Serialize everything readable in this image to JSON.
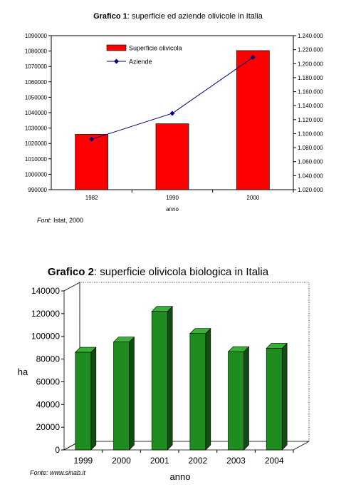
{
  "chart_data": [
    {
      "type": "bar",
      "title_bold": "Grafico 1",
      "title_rest": ": superficie ed aziende olivicole in Italia",
      "categories": [
        "1982",
        "1990",
        "2000"
      ],
      "xlabel": "anno",
      "series": [
        {
          "name": "Superficie olivicola",
          "kind": "bar",
          "axis": "left",
          "color": "#ff0000",
          "values": [
            1025900,
            1032800,
            1080300
          ]
        },
        {
          "name": "Aziende",
          "kind": "line",
          "axis": "right",
          "color": "#000080",
          "values": [
            1092000,
            1129000,
            1209000
          ]
        }
      ],
      "y_left": {
        "ylim": [
          990000,
          1090000
        ],
        "ticks": [
          "990000",
          "1000000",
          "1010000",
          "1020000",
          "1030000",
          "1040000",
          "1050000",
          "1060000",
          "1070000",
          "1080000",
          "1090000"
        ]
      },
      "y_right": {
        "ylim": [
          1020000,
          1240000
        ],
        "ticks": [
          "1.020.000",
          "1.040.000",
          "1.060.000",
          "1.080.000",
          "1.100.000",
          "1.120.000",
          "1.140.000",
          "1.160.000",
          "1.180.000",
          "1.200.000",
          "1.220.000",
          "1.240.000"
        ]
      },
      "legend_position": "top-left",
      "source_prefix": "Font",
      "source_rest": ": Istat, 2000"
    },
    {
      "type": "bar",
      "title_bold": "Grafico 2",
      "title_rest": ": superficie olivicola biologica in Italia",
      "categories": [
        "1999",
        "2000",
        "2001",
        "2002",
        "2003",
        "2004"
      ],
      "values": [
        86000,
        95000,
        122000,
        102500,
        86500,
        89500
      ],
      "xlabel": "anno",
      "ylabel": "ha",
      "ylim": [
        0,
        140000
      ],
      "yticks": [
        "0",
        "20000",
        "40000",
        "60000",
        "80000",
        "100000",
        "120000",
        "140000"
      ],
      "bar_color": "#1e8c1e",
      "source": "Fonte: www.sinab.it"
    }
  ]
}
